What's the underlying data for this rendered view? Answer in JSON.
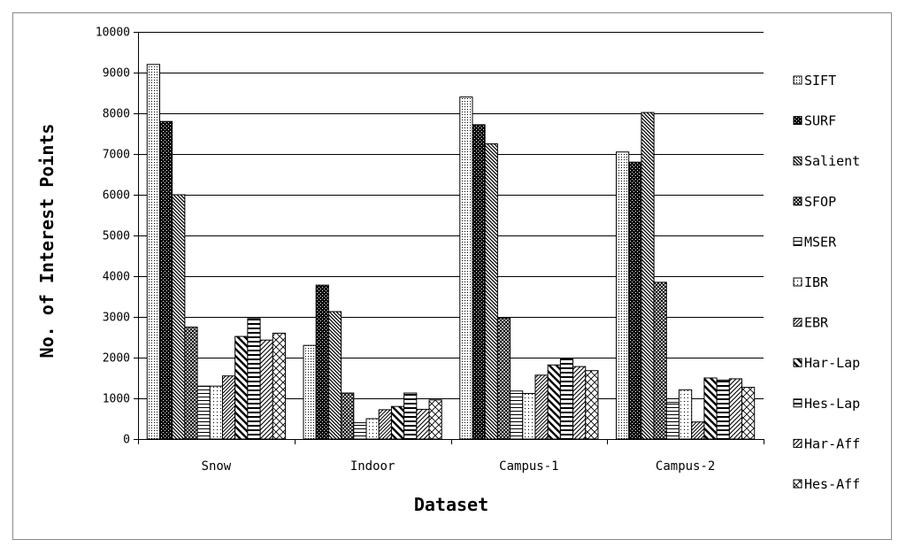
{
  "chart_data": {
    "type": "bar",
    "xlabel": "Dataset",
    "ylabel": "No. of Interest Points",
    "ylim": [
      0,
      10000
    ],
    "yticks": [
      0,
      1000,
      2000,
      3000,
      4000,
      5000,
      6000,
      7000,
      8000,
      9000,
      10000
    ],
    "grid": "horizontal",
    "legend_position": "right",
    "categories": [
      "Snow",
      "Indoor",
      "Campus-1",
      "Campus-2"
    ],
    "series": [
      {
        "name": "SIFT",
        "pattern": "dots-fine",
        "values": [
          9200,
          2300,
          8400,
          7050
        ]
      },
      {
        "name": "SURF",
        "pattern": "checker",
        "values": [
          7800,
          3780,
          7720,
          6800
        ]
      },
      {
        "name": "Salient",
        "pattern": "diag-dense",
        "values": [
          6000,
          3130,
          7250,
          8020
        ]
      },
      {
        "name": "SFOP",
        "pattern": "crosshatch",
        "values": [
          2750,
          1130,
          2970,
          3850
        ]
      },
      {
        "name": "MSER",
        "pattern": "hlines",
        "values": [
          1300,
          400,
          1180,
          900
        ]
      },
      {
        "name": "IBR",
        "pattern": "dots-sparse",
        "values": [
          1300,
          500,
          1120,
          1210
        ]
      },
      {
        "name": "EBR",
        "pattern": "diag-fwd",
        "values": [
          1550,
          720,
          1570,
          420
        ]
      },
      {
        "name": "Har-Lap",
        "pattern": "diag-wide",
        "values": [
          2520,
          800,
          1820,
          1500
        ]
      },
      {
        "name": "Hes-Lap",
        "pattern": "hlines-bold",
        "values": [
          2960,
          1130,
          1980,
          1450
        ]
      },
      {
        "name": "Har-Aff",
        "pattern": "diag-fwd-2",
        "values": [
          2430,
          730,
          1780,
          1480
        ]
      },
      {
        "name": "Hes-Aff",
        "pattern": "zigzag",
        "values": [
          2600,
          960,
          1680,
          1270
        ]
      }
    ]
  }
}
